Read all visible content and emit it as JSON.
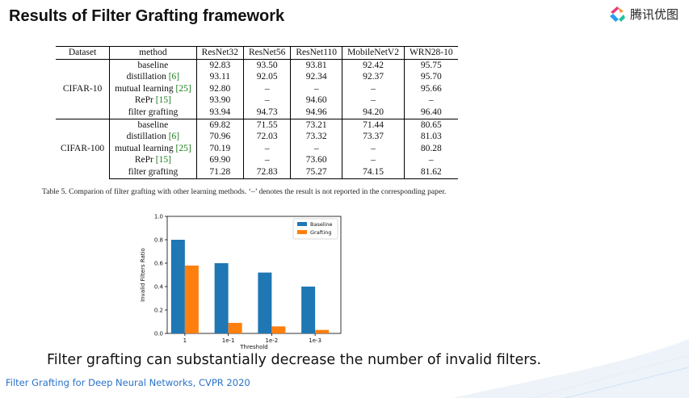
{
  "slide": {
    "title": "Results of Filter Grafting framework",
    "statement": "Filter grafting can substantially decrease the number of invalid filters.",
    "footer": "Filter Grafting for Deep Neural Networks, CVPR 2020"
  },
  "logo": {
    "text": "腾讯优图",
    "icon": "tencent-youtu-logo-icon"
  },
  "table": {
    "headers": [
      "Dataset",
      "method",
      "ResNet32",
      "ResNet56",
      "ResNet110",
      "MobileNetV2",
      "WRN28-10"
    ],
    "groups": [
      {
        "dataset": "CIFAR-10",
        "rows": [
          {
            "method": "baseline",
            "ref": "",
            "values": [
              "92.83",
              "93.50",
              "93.81",
              "92.42",
              "95.75"
            ],
            "bold": false
          },
          {
            "method": "distillation ",
            "ref": "[6]",
            "values": [
              "93.11",
              "92.05",
              "92.34",
              "92.37",
              "95.70"
            ],
            "bold": false
          },
          {
            "method": "mutual learning ",
            "ref": "[25]",
            "values": [
              "92.80",
              "–",
              "–",
              "–",
              "95.66"
            ],
            "bold": false
          },
          {
            "method": "RePr ",
            "ref": "[15]",
            "values": [
              "93.90",
              "–",
              "94.60",
              "–",
              "–"
            ],
            "bold": false
          },
          {
            "method": "filter grafting",
            "ref": "",
            "values": [
              "93.94",
              "94.73",
              "94.96",
              "94.20",
              "96.40"
            ],
            "bold": true
          }
        ]
      },
      {
        "dataset": "CIFAR-100",
        "rows": [
          {
            "method": "baseline",
            "ref": "",
            "values": [
              "69.82",
              "71.55",
              "73.21",
              "71.44",
              "80.65"
            ],
            "bold": false
          },
          {
            "method": "distillation ",
            "ref": "[6]",
            "values": [
              "70.96",
              "72.03",
              "73.32",
              "73.37",
              "81.03"
            ],
            "bold": false
          },
          {
            "method": "mutual learning ",
            "ref": "[25]",
            "values": [
              "70.19",
              "–",
              "–",
              "–",
              "80.28"
            ],
            "bold": false
          },
          {
            "method": "RePr ",
            "ref": "[15]",
            "values": [
              "69.90",
              "–",
              "73.60",
              "–",
              "–"
            ],
            "bold": false
          },
          {
            "method": "filter grafting",
            "ref": "",
            "values": [
              "71.28",
              "72.83",
              "75.27",
              "74.15",
              "81.62"
            ],
            "bold": true
          }
        ]
      }
    ],
    "caption": "Table 5. Comparion of filter grafting with other learning methods.  ‘–’ denotes the result is not reported in the corresponding paper."
  },
  "chart_data": {
    "type": "bar",
    "categories": [
      "1",
      "1e-1",
      "1e-2",
      "1e-3"
    ],
    "series": [
      {
        "name": "Baseline",
        "values": [
          0.8,
          0.6,
          0.52,
          0.4
        ],
        "color": "#1f77b4"
      },
      {
        "name": "Grafting",
        "values": [
          0.58,
          0.09,
          0.06,
          0.03
        ],
        "color": "#ff7f0e"
      }
    ],
    "xlabel": "Threshold",
    "ylabel": "Invalid Filters Ratio",
    "ylim": [
      0,
      1.0
    ],
    "yticks": [
      "0.0",
      "0.2",
      "0.4",
      "0.6",
      "0.8",
      "1.0"
    ],
    "legend": "top-right",
    "grid": false
  }
}
